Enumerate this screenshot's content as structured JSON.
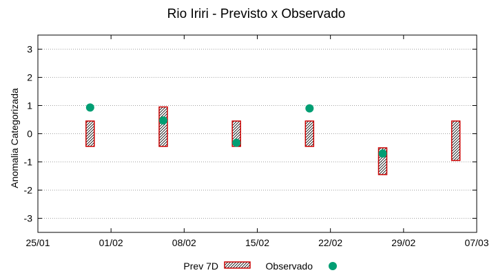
{
  "chart_data": {
    "type": "scatter",
    "title": "Rio Iriri - Previsto x Observado",
    "ylabel": "Anomalia Categorizada",
    "xlabel": "",
    "ylim": [
      -3.5,
      3.5
    ],
    "yticks": [
      -3,
      -2,
      -1,
      0,
      1,
      2,
      3
    ],
    "x_tick_labels": [
      "25/01",
      "01/02",
      "08/02",
      "15/02",
      "22/02",
      "29/02",
      "07/03"
    ],
    "x_day_range": [
      0,
      42
    ],
    "x_tick_days": [
      0,
      7,
      14,
      21,
      28,
      35,
      42
    ],
    "grid": true,
    "series": [
      {
        "name": "Prev 7D",
        "kind": "range-box",
        "color": "#cc0000",
        "points": [
          {
            "day": 5,
            "low": -0.45,
            "high": 0.45
          },
          {
            "day": 12,
            "low": -0.45,
            "high": 0.95
          },
          {
            "day": 19,
            "low": -0.45,
            "high": 0.45
          },
          {
            "day": 26,
            "low": -0.45,
            "high": 0.45
          },
          {
            "day": 33,
            "low": -1.45,
            "high": -0.5
          },
          {
            "day": 40,
            "low": -0.95,
            "high": 0.45
          }
        ]
      },
      {
        "name": "Observado",
        "kind": "point",
        "color": "#009e73",
        "points": [
          {
            "day": 5,
            "value": 0.93
          },
          {
            "day": 12,
            "value": 0.47
          },
          {
            "day": 19,
            "value": -0.32
          },
          {
            "day": 26,
            "value": 0.9
          },
          {
            "day": 33,
            "value": -0.7
          }
        ]
      }
    ],
    "legend_position": "bottom-center"
  }
}
